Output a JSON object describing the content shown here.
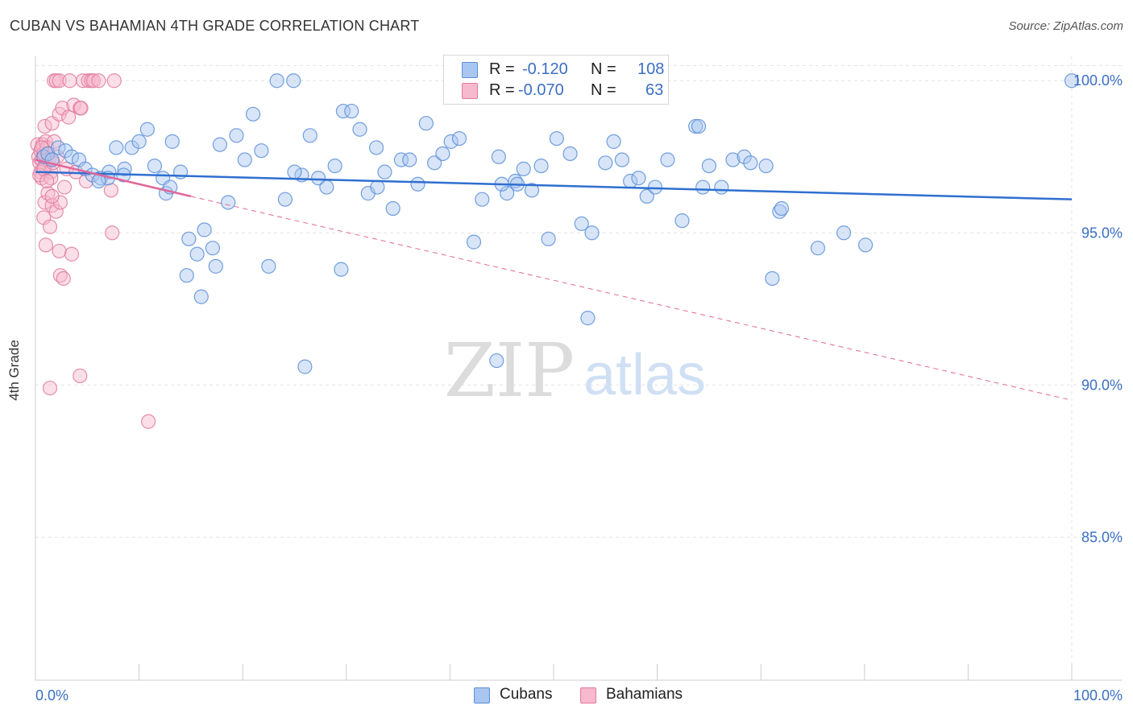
{
  "header": {
    "title": "CUBAN VS BAHAMIAN 4TH GRADE CORRELATION CHART",
    "source": "Source: ZipAtlas.com"
  },
  "watermark": {
    "zip": "ZIP",
    "atlas": "atlas"
  },
  "legend": {
    "r_label": "R =",
    "n_label": "N =",
    "items": [
      {
        "name": "Cubans",
        "r": "-0.120",
        "n": "108",
        "fill": "#a9c6f0",
        "stroke": "#5b8fd8"
      },
      {
        "name": "Bahamians",
        "r": "-0.070",
        "n": "63",
        "fill": "#f7b9cd",
        "stroke": "#e07aa0"
      }
    ]
  },
  "colors": {
    "blue_line": "#2f6fd0",
    "pink_line": "#e0679a",
    "axis_text": "#3a6fc4",
    "grid": "#e4e4e4"
  },
  "chart_data": {
    "type": "scatter",
    "title": "CUBAN VS BAHAMIAN 4TH GRADE CORRELATION CHART",
    "xlabel": "",
    "ylabel": "4th Grade",
    "xlim": [
      0,
      100
    ],
    "ylim": [
      80.3,
      100.8
    ],
    "x_tick_labels": [
      "0.0%",
      "100.0%"
    ],
    "y_ticks": [
      85,
      90,
      95,
      100
    ],
    "y_tick_labels": [
      "85.0%",
      "90.0%",
      "95.0%",
      "100.0%"
    ],
    "grid": true,
    "legend_position": "top-center",
    "series": [
      {
        "name": "Cubans",
        "r": -0.12,
        "n": 108,
        "trend": {
          "x": [
            0,
            100
          ],
          "y": [
            97.0,
            96.1
          ]
        },
        "points": [
          [
            0.8,
            97.5
          ],
          [
            1.2,
            97.6
          ],
          [
            1.6,
            97.4
          ],
          [
            2.2,
            97.8
          ],
          [
            2.9,
            97.7
          ],
          [
            3.5,
            97.5
          ],
          [
            4.2,
            97.4
          ],
          [
            4.8,
            97.1
          ],
          [
            5.5,
            96.9
          ],
          [
            6.3,
            96.8
          ],
          [
            7.1,
            97.0
          ],
          [
            7.8,
            97.8
          ],
          [
            8.6,
            97.1
          ],
          [
            9.3,
            97.8
          ],
          [
            10.0,
            98.0
          ],
          [
            10.8,
            98.4
          ],
          [
            11.5,
            97.2
          ],
          [
            12.3,
            96.8
          ],
          [
            13.2,
            98.0
          ],
          [
            14.0,
            97.0
          ],
          [
            14.8,
            94.8
          ],
          [
            15.6,
            94.3
          ],
          [
            16.3,
            95.1
          ],
          [
            17.1,
            94.5
          ],
          [
            17.8,
            97.9
          ],
          [
            18.6,
            96.0
          ],
          [
            19.4,
            98.2
          ],
          [
            20.2,
            97.4
          ],
          [
            21.0,
            98.9
          ],
          [
            21.8,
            97.7
          ],
          [
            22.5,
            93.9
          ],
          [
            23.3,
            100.0
          ],
          [
            24.1,
            96.1
          ],
          [
            24.9,
            100.0
          ],
          [
            25.7,
            96.9
          ],
          [
            26.5,
            98.2
          ],
          [
            27.3,
            96.8
          ],
          [
            28.1,
            96.5
          ],
          [
            28.9,
            97.2
          ],
          [
            29.7,
            99.0
          ],
          [
            30.5,
            99.0
          ],
          [
            31.3,
            98.4
          ],
          [
            32.1,
            96.3
          ],
          [
            32.9,
            97.8
          ],
          [
            33.7,
            97.0
          ],
          [
            34.5,
            95.8
          ],
          [
            35.3,
            97.4
          ],
          [
            36.1,
            97.4
          ],
          [
            36.9,
            96.6
          ],
          [
            37.7,
            98.6
          ],
          [
            38.5,
            97.3
          ],
          [
            39.3,
            97.6
          ],
          [
            40.1,
            98.0
          ],
          [
            40.9,
            98.1
          ],
          [
            42.3,
            94.7
          ],
          [
            43.1,
            96.1
          ],
          [
            44.7,
            97.5
          ],
          [
            45.5,
            96.3
          ],
          [
            46.3,
            96.7
          ],
          [
            47.1,
            97.1
          ],
          [
            47.9,
            96.4
          ],
          [
            48.8,
            97.2
          ],
          [
            49.5,
            94.8
          ],
          [
            50.3,
            98.1
          ],
          [
            51.6,
            97.6
          ],
          [
            52.7,
            95.3
          ],
          [
            53.3,
            92.2
          ],
          [
            53.7,
            95.0
          ],
          [
            55.0,
            97.3
          ],
          [
            55.8,
            98.0
          ],
          [
            56.6,
            97.4
          ],
          [
            57.4,
            96.7
          ],
          [
            58.2,
            96.8
          ],
          [
            59.0,
            96.2
          ],
          [
            59.8,
            96.5
          ],
          [
            61.0,
            97.4
          ],
          [
            62.4,
            95.4
          ],
          [
            63.7,
            98.5
          ],
          [
            64.4,
            96.5
          ],
          [
            65.0,
            97.2
          ],
          [
            66.2,
            96.5
          ],
          [
            67.3,
            97.4
          ],
          [
            68.4,
            97.5
          ],
          [
            69.0,
            97.3
          ],
          [
            70.5,
            97.2
          ],
          [
            71.1,
            93.5
          ],
          [
            71.8,
            95.7
          ],
          [
            75.5,
            94.5
          ],
          [
            78.0,
            95.0
          ],
          [
            80.1,
            94.6
          ],
          [
            100.0,
            100.0
          ],
          [
            16.0,
            92.9
          ],
          [
            26.0,
            90.6
          ],
          [
            44.5,
            90.8
          ],
          [
            14.6,
            93.6
          ],
          [
            17.4,
            93.9
          ],
          [
            64.0,
            98.5
          ],
          [
            72.0,
            95.8
          ],
          [
            8.5,
            96.9
          ],
          [
            7.0,
            96.8
          ],
          [
            12.6,
            96.3
          ],
          [
            13.0,
            96.5
          ],
          [
            6.1,
            96.7
          ],
          [
            25.0,
            97.0
          ],
          [
            29.5,
            93.8
          ],
          [
            33.0,
            96.5
          ],
          [
            45.0,
            96.6
          ],
          [
            46.5,
            96.6
          ]
        ]
      },
      {
        "name": "Bahamians",
        "r": -0.07,
        "n": 63,
        "trend_solid": {
          "x": [
            0,
            15
          ],
          "y": [
            97.4,
            96.2
          ]
        },
        "trend_dashed": {
          "x": [
            15,
            100
          ],
          "y": [
            96.2,
            89.5
          ]
        },
        "points": [
          [
            0.2,
            97.9
          ],
          [
            0.3,
            97.5
          ],
          [
            0.4,
            97.3
          ],
          [
            0.5,
            97.7
          ],
          [
            0.6,
            97.4
          ],
          [
            0.7,
            97.9
          ],
          [
            0.8,
            97.6
          ],
          [
            0.9,
            97.2
          ],
          [
            1.0,
            98.0
          ],
          [
            1.1,
            97.8
          ],
          [
            0.5,
            97.0
          ],
          [
            0.6,
            96.8
          ],
          [
            0.9,
            96.0
          ],
          [
            1.2,
            96.3
          ],
          [
            1.5,
            97.0
          ],
          [
            0.4,
            96.9
          ],
          [
            0.8,
            95.5
          ],
          [
            1.4,
            95.2
          ],
          [
            1.6,
            95.9
          ],
          [
            2.0,
            95.7
          ],
          [
            2.4,
            96.0
          ],
          [
            2.8,
            96.5
          ],
          [
            0.9,
            98.5
          ],
          [
            1.6,
            98.6
          ],
          [
            2.3,
            98.9
          ],
          [
            2.6,
            99.1
          ],
          [
            3.2,
            98.8
          ],
          [
            3.7,
            99.2
          ],
          [
            4.3,
            99.1
          ],
          [
            4.4,
            99.1
          ],
          [
            1.8,
            100.0
          ],
          [
            2.0,
            100.0
          ],
          [
            2.3,
            100.0
          ],
          [
            3.3,
            100.0
          ],
          [
            4.6,
            100.0
          ],
          [
            5.1,
            100.0
          ],
          [
            5.4,
            100.0
          ],
          [
            5.6,
            100.0
          ],
          [
            6.1,
            100.0
          ],
          [
            7.6,
            100.0
          ],
          [
            1.0,
            94.6
          ],
          [
            2.3,
            94.4
          ],
          [
            3.5,
            94.3
          ],
          [
            2.4,
            93.6
          ],
          [
            2.7,
            93.5
          ],
          [
            7.4,
            95.0
          ],
          [
            7.3,
            96.4
          ],
          [
            1.4,
            89.9
          ],
          [
            4.3,
            90.3
          ],
          [
            10.9,
            88.8
          ],
          [
            1.5,
            96.8
          ],
          [
            1.3,
            97.4
          ],
          [
            0.8,
            97.1
          ],
          [
            1.6,
            96.2
          ],
          [
            3.0,
            97.1
          ],
          [
            2.1,
            97.5
          ],
          [
            1.2,
            97.6
          ],
          [
            0.6,
            97.8
          ],
          [
            1.8,
            98.0
          ],
          [
            3.9,
            97.0
          ],
          [
            4.9,
            96.7
          ],
          [
            1.1,
            96.7
          ],
          [
            1.7,
            97.3
          ]
        ]
      }
    ]
  }
}
